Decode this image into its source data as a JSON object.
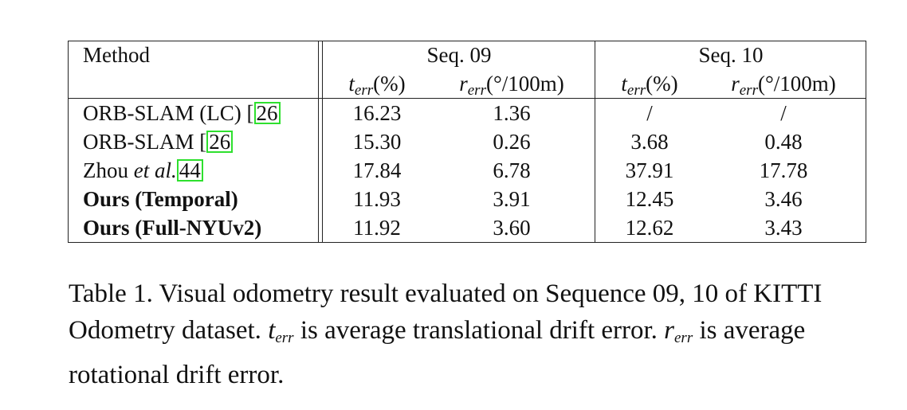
{
  "table": {
    "header": {
      "method": "Method",
      "groups": [
        "Seq. 09",
        "Seq. 10"
      ],
      "sub_cols": [
        {
          "var": "t",
          "sub": "err",
          "unit": "(%)"
        },
        {
          "var": "r",
          "sub": "err",
          "unit": "(°/100m)"
        },
        {
          "var": "t",
          "sub": "err",
          "unit": "(%)"
        },
        {
          "var": "r",
          "sub": "err",
          "unit": "(°/100m)"
        }
      ]
    },
    "rows": [
      {
        "method": "ORB-SLAM (LC) [",
        "ref": "26",
        "method_after": "",
        "bold": false,
        "cells": [
          "16.23",
          "1.36",
          "/",
          "/"
        ]
      },
      {
        "method": "ORB-SLAM [",
        "ref": "26",
        "method_after": "",
        "bold": false,
        "cells": [
          "15.30",
          "0.26",
          "3.68",
          "0.48"
        ]
      },
      {
        "method": "Zhou ",
        "method_italic": "et al.",
        "ref": "44",
        "bold": false,
        "cells": [
          "17.84",
          "6.78",
          "37.91",
          "17.78"
        ]
      },
      {
        "method": "Ours (Temporal)",
        "bold": true,
        "cells": [
          "11.93",
          "3.91",
          "12.45",
          "3.46"
        ]
      },
      {
        "method": "Ours (Full-NYUv2)",
        "bold": true,
        "cells": [
          "11.92",
          "3.60",
          "12.62",
          "3.43"
        ]
      }
    ]
  },
  "caption": {
    "part1": "Table 1. Visual odometry result evaluated on Sequence 09, 10 of KITTI Odometry dataset. ",
    "t_var": "t",
    "t_sub": "err",
    "part2": " is average translational drift error. ",
    "r_var": "r",
    "r_sub": "err",
    "part3": " is average rotational drift error."
  }
}
